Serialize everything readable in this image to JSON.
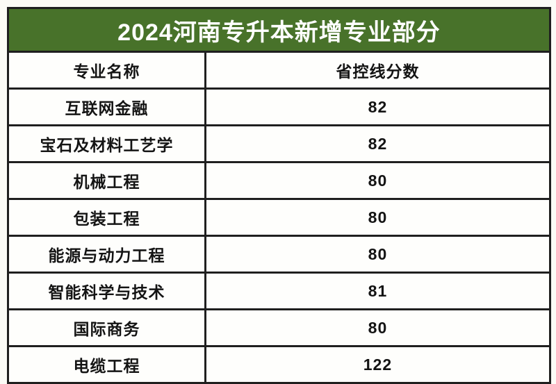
{
  "banner": {
    "title": "2024河南专升本新增专业部分"
  },
  "table": {
    "columns": [
      {
        "label": "专业名称"
      },
      {
        "label": "省控线分数"
      }
    ],
    "rows": [
      {
        "major": "互联网金融",
        "score": "82"
      },
      {
        "major": "宝石及材料工艺学",
        "score": "82"
      },
      {
        "major": "机械工程",
        "score": "80"
      },
      {
        "major": "包装工程",
        "score": "80"
      },
      {
        "major": "能源与动力工程",
        "score": "80"
      },
      {
        "major": "智能科学与技术",
        "score": "81"
      },
      {
        "major": "国际商务",
        "score": "80"
      },
      {
        "major": "电缆工程",
        "score": "122"
      }
    ]
  },
  "colors": {
    "banner_green": "#48722a",
    "border": "#1f1f1f",
    "page_bg": "#fbfbf6",
    "banner_text": "#ffffff",
    "cell_text": "#141414"
  },
  "chart_data": {
    "type": "table",
    "title": "2024河南专升本新增专业部分",
    "columns": [
      "专业名称",
      "省控线分数"
    ],
    "rows": [
      [
        "互联网金融",
        82
      ],
      [
        "宝石及材料工艺学",
        82
      ],
      [
        "机械工程",
        80
      ],
      [
        "包装工程",
        80
      ],
      [
        "能源与动力工程",
        80
      ],
      [
        "智能科学与技术",
        81
      ],
      [
        "国际商务",
        80
      ],
      [
        "电缆工程",
        122
      ]
    ]
  }
}
